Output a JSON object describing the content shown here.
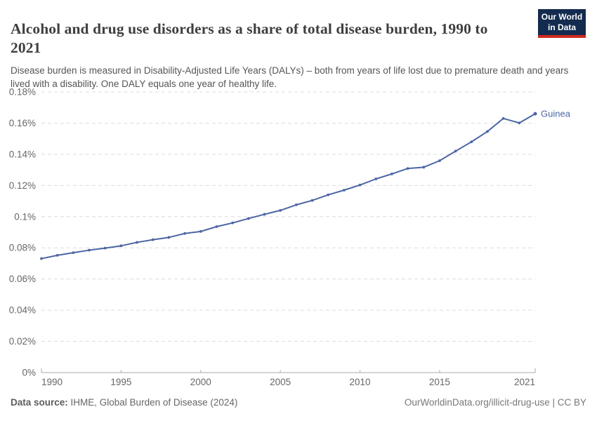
{
  "header": {
    "title": "Alcohol and drug use disorders as a share of total disease burden, 1990 to 2021",
    "subtitle": "Disease burden is measured in Disability-Adjusted Life Years (DALYs) – both from years of life lost due to premature death and years lived with a disability. One DALY equals one year of healthy life."
  },
  "logo": {
    "line1": "Our World",
    "line2": "in Data",
    "bg_color": "#132B4E",
    "accent_color": "#CE2A1C"
  },
  "chart_data": {
    "type": "line",
    "title": "Alcohol and drug use disorders as a share of total disease burden, 1990 to 2021",
    "unit": "%",
    "grid": "horizontal-dashed",
    "legend_position": "end-of-line",
    "xlim": [
      1990,
      2021
    ],
    "ylim": [
      0,
      0.18
    ],
    "xticks": [
      1990,
      1995,
      2000,
      2005,
      2010,
      2015,
      2021
    ],
    "ytick_values": [
      0,
      0.02,
      0.04,
      0.06,
      0.08,
      0.1,
      0.12,
      0.14,
      0.16,
      0.18
    ],
    "ytick_labels": [
      "0%",
      "0.02%",
      "0.04%",
      "0.06%",
      "0.08%",
      "0.1%",
      "0.12%",
      "0.14%",
      "0.16%",
      "0.18%"
    ],
    "x": [
      1990,
      1991,
      1992,
      1993,
      1994,
      1995,
      1996,
      1997,
      1998,
      1999,
      2000,
      2001,
      2002,
      2003,
      2004,
      2005,
      2006,
      2007,
      2008,
      2009,
      2010,
      2011,
      2012,
      2013,
      2014,
      2015,
      2016,
      2017,
      2018,
      2019,
      2020,
      2021
    ],
    "series": [
      {
        "name": "Guinea",
        "color": "#4C66A4",
        "values": [
          0.0731,
          0.0752,
          0.0769,
          0.0785,
          0.0798,
          0.0813,
          0.0835,
          0.0852,
          0.0867,
          0.0892,
          0.0905,
          0.0936,
          0.096,
          0.0988,
          0.1015,
          0.104,
          0.1076,
          0.1104,
          0.114,
          0.117,
          0.1203,
          0.1242,
          0.1274,
          0.1309,
          0.1317,
          0.1359,
          0.142,
          0.148,
          0.1546,
          0.163,
          0.1601,
          0.166
        ]
      }
    ]
  },
  "footer": {
    "source_label": "Data source:",
    "source_value": " IHME, Global Burden of Disease (2024)",
    "credit": "OurWorldinData.org/illicit-drug-use | CC BY"
  },
  "colors": {
    "line": "#4C66A4",
    "gridline": "#dcdcdc",
    "axis": "#a8a8a8",
    "tick_text": "#666666",
    "title_text": "#3f3f3f",
    "subtitle_text": "#555555"
  }
}
